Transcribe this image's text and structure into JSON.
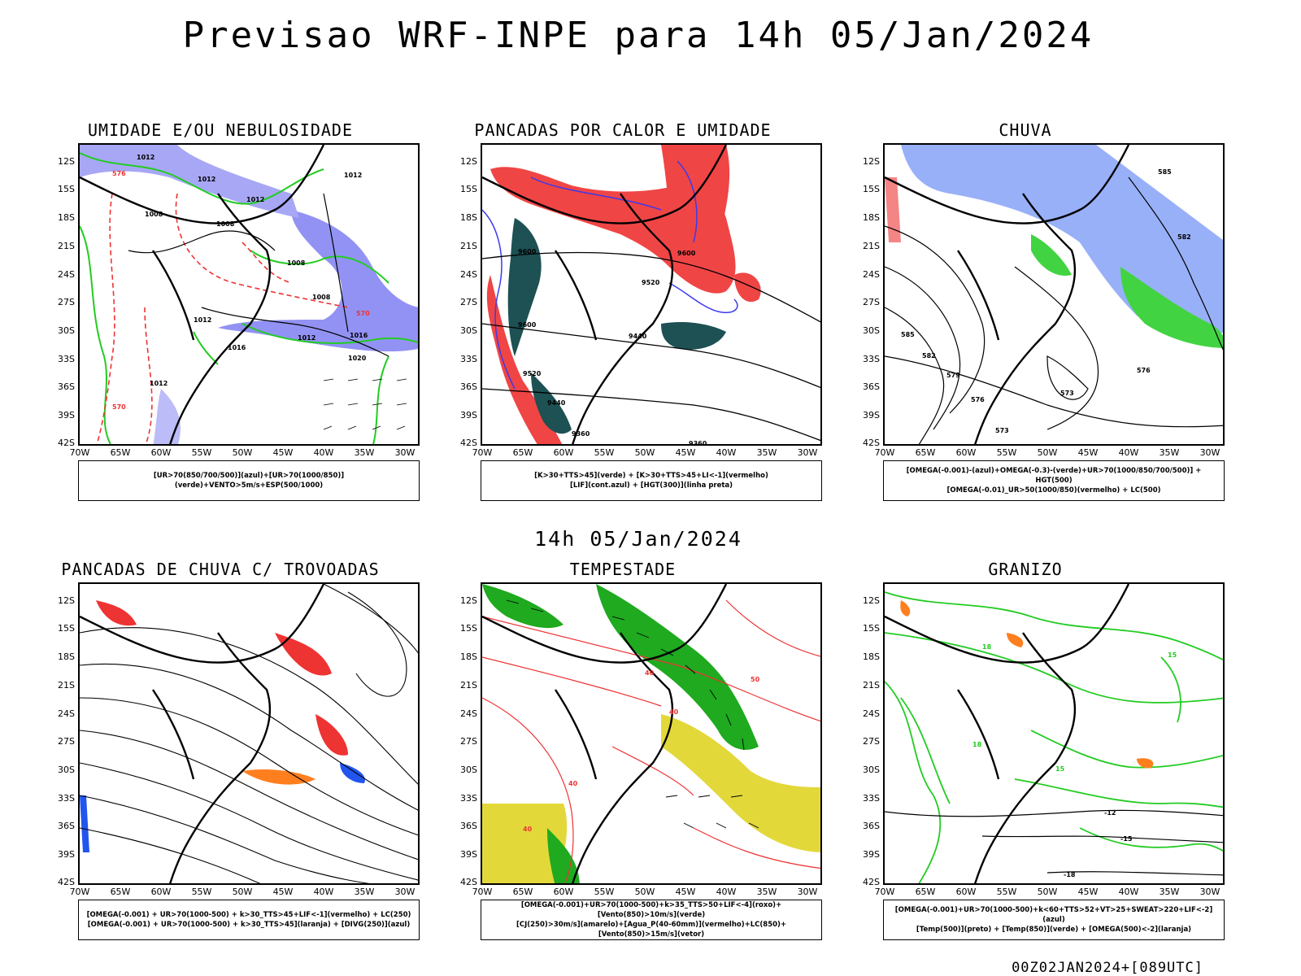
{
  "title": "Previsao WRF-INPE  para 14h 05/Jan/2024",
  "mid_label": "14h 05/Jan/2024",
  "run_label": "00Z02JAN2024+[089UTC]",
  "lat_labels": [
    "12S",
    "15S",
    "18S",
    "21S",
    "24S",
    "27S",
    "30S",
    "33S",
    "36S",
    "39S",
    "42S"
  ],
  "lon_labels": [
    "70W",
    "65W",
    "60W",
    "55W",
    "50W",
    "45W",
    "40W",
    "35W",
    "30W"
  ],
  "panels": [
    {
      "title": "UMIDADE E/OU NEBULOSIDADE",
      "legend": [
        "[UR>70(850/700/500)](azul)+[UR>70(1000/850)](verde)+VENTO>5m/s+ESP(500/1000)"
      ],
      "contour_labels": [
        "1012",
        "1012",
        "1008",
        "1008",
        "1012",
        "1008",
        "1012",
        "1012",
        "1020",
        "1016",
        "1012",
        "1012",
        "1008",
        "1016",
        "576",
        "570",
        "570"
      ]
    },
    {
      "title": "PANCADAS POR CALOR E UMIDADE",
      "legend": [
        "[K>30+TTS>45](verde) + [K>30+TTS>45+LI<-1](vermelho)",
        "[LIF](cont.azul) + [HGT(300)](linha preta)"
      ],
      "contour_labels": [
        "9600",
        "9600",
        "9520",
        "9440",
        "9600",
        "9520",
        "9440",
        "9360",
        "9360"
      ]
    },
    {
      "title": "CHUVA",
      "legend": [
        "[OMEGA(-0.001)-(azul)+OMEGA(-0.3)-(verde)+UR>70(1000/850/700/500)] + HGT(500)",
        "[OMEGA(-0.01)_UR>50(1000/850)(vermelho) + LC(500)"
      ],
      "contour_labels": [
        "585",
        "582",
        "579",
        "576",
        "573",
        "576",
        "573",
        "585",
        "582"
      ]
    },
    {
      "title": "PANCADAS DE CHUVA C/ TROVOADAS",
      "legend": [
        "[OMEGA(-0.001) + UR>70(1000-500) + k>30_TTS>45+LIF<-1](vermelho) + LC(250)",
        "[OMEGA(-0.001) + UR>70(1000-500) + k>30_TTS>45](laranja) + [DIVG(250)](azul)"
      ],
      "contour_labels": []
    },
    {
      "title": "TEMPESTADE",
      "legend": [
        "[OMEGA(-0.001)+UR>70(1000-500)+k>35_TTS>50+LIF<-4](roxo)+[Vento(850)>10m/s](verde)",
        "[CJ(250)>30m/s](amarelo)+[Agua_P(40-60mm)](vermelho)+LC(850)+[Vento(850)>15m/s](vetor)"
      ],
      "contour_labels": [
        "40",
        "40",
        "40",
        "50",
        "40"
      ]
    },
    {
      "title": "GRANIZO",
      "legend": [
        "[OMEGA(-0.001)+UR>70(1000-500)+k<60+TTS>52+VT>25+SWEAT>220+LIF<-2](azul)",
        "[Temp(500)](preto) + [Temp(850)](verde) + [OMEGA(500)<-2](laranja)"
      ],
      "contour_labels": [
        "-12",
        "-15",
        "-18",
        "15",
        "18",
        "15",
        "18"
      ]
    }
  ]
}
